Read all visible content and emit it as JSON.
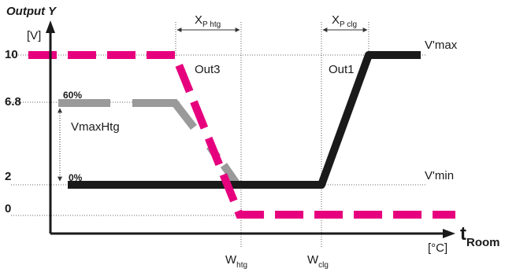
{
  "colors": {
    "axis": "#1a1a1a",
    "out3": "#e6007e",
    "out1": "#1a1a1a",
    "vmaxhtg": "#9a9a9a",
    "guide": "#333333"
  },
  "axes": {
    "y_title": "Output Y",
    "y_unit": "[V]",
    "x_unit": "[°C]",
    "x_title_main": "t",
    "x_title_sub": "Room"
  },
  "y_ticks": {
    "v10": "10",
    "v6_8": "6.8",
    "v2": "2",
    "v0": "0"
  },
  "x_markers": {
    "w_htg_main": "W",
    "w_htg_sub": "htg",
    "w_clg_main": "W",
    "w_clg_sub": "clg"
  },
  "bands": {
    "xp_htg_main": "X",
    "xp_htg_sub": "P htg",
    "xp_clg_main": "X",
    "xp_clg_sub": "P clg"
  },
  "labels": {
    "vmax": "V'max",
    "vmin": "V'min",
    "out3": "Out3",
    "out1": "Out1",
    "vmaxhtg": "VmaxHtg",
    "pct60": "60%",
    "pct0": "0%"
  }
}
